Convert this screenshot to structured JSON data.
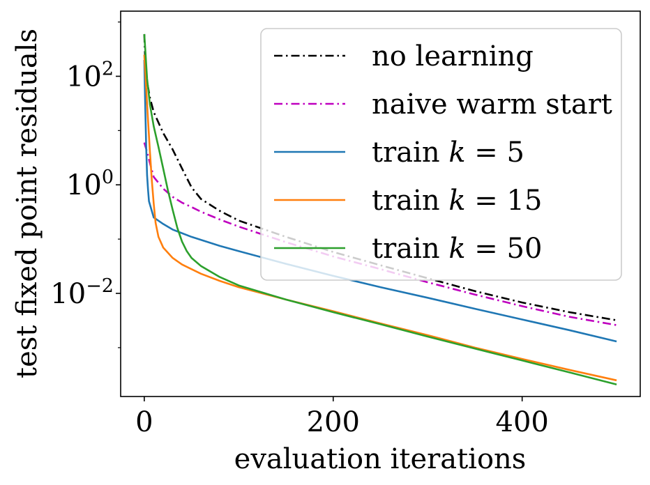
{
  "chart_data": {
    "type": "line",
    "xlabel": "evaluation iterations",
    "ylabel": "test fixed point residuals",
    "xlim": [
      -25,
      525
    ],
    "ylim_log10": [
      -3.9,
      3.2
    ],
    "yscale": "log",
    "grid": false,
    "legend_placement": "top-right",
    "x_ticks": [
      {
        "value": 0,
        "label": "0"
      },
      {
        "value": 200,
        "label": "200"
      },
      {
        "value": 400,
        "label": "400"
      }
    ],
    "y_ticks": [
      {
        "log10": 2,
        "base": "10",
        "exp": "2"
      },
      {
        "log10": 0,
        "base": "10",
        "exp": "0"
      },
      {
        "log10": -2,
        "base": "10",
        "exp": "−2"
      }
    ],
    "series": [
      {
        "name": "no learning",
        "color": "#000000",
        "style": "dashdot",
        "x": [
          0,
          1,
          3,
          6,
          10,
          20,
          30,
          40,
          50,
          60,
          80,
          100,
          150,
          200,
          250,
          300,
          350,
          400,
          450,
          500
        ],
        "y": [
          600,
          200,
          80,
          40,
          22,
          9,
          4.5,
          2.0,
          0.9,
          0.55,
          0.33,
          0.22,
          0.11,
          0.058,
          0.033,
          0.019,
          0.011,
          0.0068,
          0.0045,
          0.0032
        ]
      },
      {
        "name": "naive warm start",
        "color": "#bf00bf",
        "style": "dashdot",
        "x": [
          0,
          3,
          6,
          10,
          20,
          30,
          40,
          50,
          60,
          80,
          100,
          150,
          200,
          250,
          300,
          350,
          400,
          450,
          500
        ],
        "y": [
          6,
          4,
          2.5,
          1.4,
          0.85,
          0.6,
          0.47,
          0.39,
          0.32,
          0.23,
          0.17,
          0.088,
          0.048,
          0.028,
          0.016,
          0.0095,
          0.0058,
          0.0037,
          0.0026
        ]
      },
      {
        "name": "train k = 5",
        "color": "#1f77b4",
        "style": "solid",
        "x": [
          0,
          1,
          2,
          3,
          4,
          5,
          10,
          20,
          30,
          50,
          80,
          100,
          150,
          200,
          250,
          300,
          350,
          400,
          450,
          500
        ],
        "y": [
          200,
          30,
          5,
          1.5,
          0.8,
          0.5,
          0.25,
          0.19,
          0.15,
          0.11,
          0.075,
          0.06,
          0.035,
          0.021,
          0.013,
          0.0083,
          0.0052,
          0.0033,
          0.0021,
          0.0013
        ]
      },
      {
        "name": "train k = 15",
        "color": "#ff7f0e",
        "style": "solid",
        "x": [
          0,
          2,
          4,
          6,
          8,
          10,
          12,
          15,
          20,
          30,
          40,
          60,
          80,
          100,
          150,
          200,
          250,
          300,
          350,
          400,
          450,
          500
        ],
        "y": [
          250,
          60,
          15,
          4,
          1.2,
          0.45,
          0.2,
          0.11,
          0.07,
          0.045,
          0.034,
          0.023,
          0.017,
          0.013,
          0.0077,
          0.0047,
          0.0028,
          0.0017,
          0.001,
          0.00062,
          0.00039,
          0.00025
        ]
      },
      {
        "name": "train k = 50",
        "color": "#2ca02c",
        "style": "solid",
        "x": [
          0,
          3,
          6,
          10,
          15,
          20,
          25,
          30,
          35,
          40,
          45,
          50,
          60,
          80,
          100,
          150,
          200,
          250,
          300,
          350,
          400,
          450,
          500
        ],
        "y": [
          600,
          90,
          30,
          12,
          5,
          2,
          0.8,
          0.35,
          0.16,
          0.09,
          0.06,
          0.045,
          0.032,
          0.02,
          0.014,
          0.0077,
          0.0045,
          0.0027,
          0.0016,
          0.00096,
          0.00058,
          0.00035,
          0.00021
        ]
      }
    ],
    "legend": [
      {
        "name": "no learning",
        "label_pre": "no learning",
        "math_k": false,
        "label_post": ""
      },
      {
        "name": "naive warm start",
        "label_pre": "naive warm start",
        "math_k": false,
        "label_post": ""
      },
      {
        "name": "train k = 5",
        "label_pre": "train ",
        "math_k": true,
        "label_post": " = 5"
      },
      {
        "name": "train k = 15",
        "label_pre": "train ",
        "math_k": true,
        "label_post": " = 15"
      },
      {
        "name": "train k = 50",
        "label_pre": "train ",
        "math_k": true,
        "label_post": " = 50"
      }
    ]
  }
}
